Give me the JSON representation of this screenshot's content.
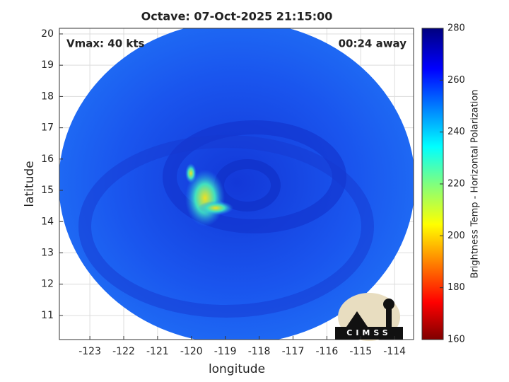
{
  "chart_data": {
    "type": "image",
    "title": "Octave: 07-Oct-2025 21:15:00",
    "annotations": [
      "Vmax: 40 kts",
      "00:24 away"
    ],
    "xlabel": "longitude",
    "ylabel": "latitude",
    "xlim": [
      -123.9,
      -113.44
    ],
    "ylim": [
      10.23,
      20.18
    ],
    "xticks": [
      -123,
      -122,
      -121,
      -120,
      -119,
      -118,
      -117,
      -116,
      -115,
      -114
    ],
    "yticks": [
      11,
      12,
      13,
      14,
      15,
      16,
      17,
      18,
      19,
      20
    ],
    "grid": true,
    "colorbar": {
      "label": "Brightness Temp - Horizontal Polarization",
      "lim": [
        160,
        280
      ],
      "ticks": [
        160,
        180,
        200,
        220,
        240,
        260,
        280
      ]
    },
    "logo_text": "CIMSS"
  }
}
